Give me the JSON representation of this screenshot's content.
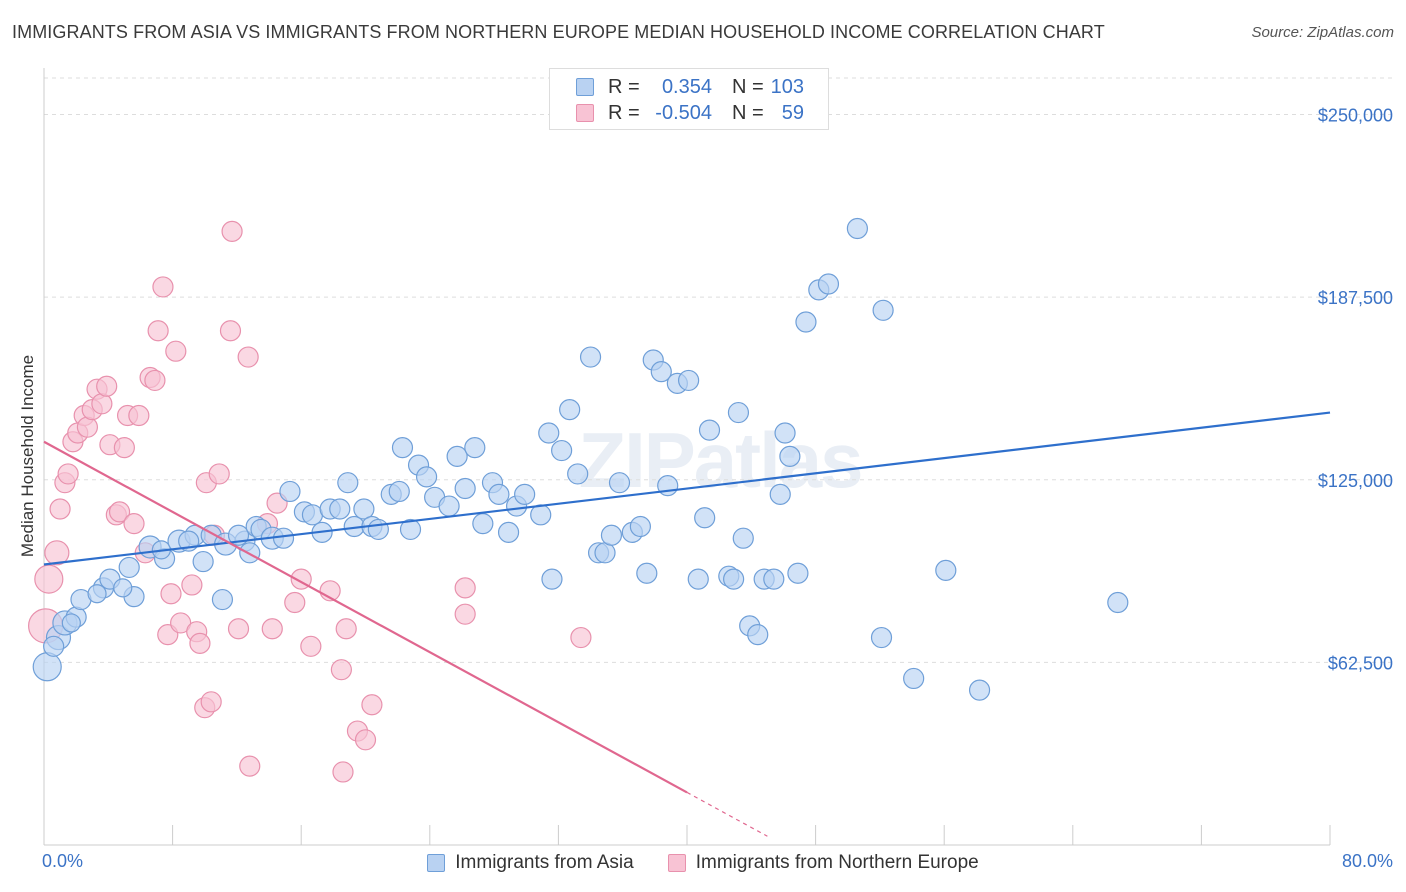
{
  "title": "IMMIGRANTS FROM ASIA VS IMMIGRANTS FROM NORTHERN EUROPE MEDIAN HOUSEHOLD INCOME CORRELATION CHART",
  "source": "Source: ZipAtlas.com",
  "watermark": "ZIPatlas",
  "legend": {
    "r_label": "R =",
    "n_label": "N =",
    "rows": [
      {
        "series": "Immigrants from Asia",
        "r": "0.354",
        "n": "103"
      },
      {
        "series": "Immigrants from Northern Europe",
        "r": "-0.504",
        "n": "59"
      }
    ]
  },
  "colors": {
    "asia_fill": "#b9d2f2",
    "asia_stroke": "#6f9fd8",
    "asia_line": "#2e6fcc",
    "neu_fill": "#f8c3d4",
    "neu_stroke": "#e891ad",
    "neu_line": "#e0678f",
    "axis_text": "#3b73c6",
    "grid": "#dddddd"
  },
  "chart_data": {
    "type": "scatter",
    "title": "IMMIGRANTS FROM ASIA VS IMMIGRANTS FROM NORTHERN EUROPE MEDIAN HOUSEHOLD INCOME CORRELATION CHART",
    "xlabel": "",
    "ylabel": "Median Household Income",
    "xlim": [
      0,
      80
    ],
    "ylim": [
      0,
      262500
    ],
    "x_tick_labels": [
      "0.0%",
      "80.0%"
    ],
    "y_ticks": [
      62500,
      125000,
      187500,
      250000
    ],
    "y_tick_labels": [
      "$62,500",
      "$125,000",
      "$187,500",
      "$250,000"
    ],
    "grid": "horizontal dashed",
    "legend_position": "top-center",
    "series": [
      {
        "name": "Immigrants from Asia",
        "r": 0.354,
        "n": 103,
        "trendline": [
          [
            0,
            96000
          ],
          [
            80,
            148000
          ]
        ],
        "points": [
          [
            0.2,
            61000,
            14
          ],
          [
            0.9,
            71000,
            12
          ],
          [
            0.6,
            68000,
            10
          ],
          [
            1.3,
            76000,
            12
          ],
          [
            2,
            78000,
            10
          ],
          [
            1.7,
            76000,
            9
          ],
          [
            2.3,
            84000,
            10
          ],
          [
            3.7,
            88000,
            10
          ],
          [
            3.3,
            86000,
            9
          ],
          [
            4.1,
            91000,
            10
          ],
          [
            5.6,
            85000,
            10
          ],
          [
            5.3,
            95000,
            10
          ],
          [
            4.9,
            88000,
            9
          ],
          [
            6.6,
            102000,
            11
          ],
          [
            7.5,
            98000,
            10
          ],
          [
            7.3,
            101000,
            9
          ],
          [
            8.4,
            104000,
            11
          ],
          [
            9.4,
            106000,
            10
          ],
          [
            9,
            104000,
            10
          ],
          [
            9.9,
            97000,
            10
          ],
          [
            10.4,
            106000,
            10
          ],
          [
            11.1,
            84000,
            10
          ],
          [
            11.3,
            103000,
            11
          ],
          [
            12.5,
            104000,
            10
          ],
          [
            12.1,
            106000,
            10
          ],
          [
            12.8,
            100000,
            10
          ],
          [
            13.2,
            109000,
            10
          ],
          [
            13.5,
            108000,
            10
          ],
          [
            14.2,
            105000,
            11
          ],
          [
            14.9,
            105000,
            10
          ],
          [
            15.3,
            121000,
            10
          ],
          [
            16.2,
            114000,
            10
          ],
          [
            16.7,
            113000,
            10
          ],
          [
            17.3,
            107000,
            10
          ],
          [
            17.8,
            115000,
            10
          ],
          [
            18.4,
            115000,
            10
          ],
          [
            18.9,
            124000,
            10
          ],
          [
            19.3,
            109000,
            10
          ],
          [
            19.9,
            115000,
            10
          ],
          [
            20.4,
            109000,
            10
          ],
          [
            20.8,
            108000,
            10
          ],
          [
            21.6,
            120000,
            10
          ],
          [
            22.1,
            121000,
            10
          ],
          [
            22.3,
            136000,
            10
          ],
          [
            22.8,
            108000,
            10
          ],
          [
            23.3,
            130000,
            10
          ],
          [
            23.8,
            126000,
            10
          ],
          [
            24.3,
            119000,
            10
          ],
          [
            25.2,
            116000,
            10
          ],
          [
            25.7,
            133000,
            10
          ],
          [
            26.2,
            122000,
            10
          ],
          [
            26.8,
            136000,
            10
          ],
          [
            27.3,
            110000,
            10
          ],
          [
            27.9,
            124000,
            10
          ],
          [
            28.3,
            120000,
            10
          ],
          [
            28.9,
            107000,
            10
          ],
          [
            29.4,
            116000,
            10
          ],
          [
            29.9,
            120000,
            10
          ],
          [
            30.9,
            113000,
            10
          ],
          [
            31.4,
            141000,
            10
          ],
          [
            31.6,
            91000,
            10
          ],
          [
            32.2,
            135000,
            10
          ],
          [
            32.7,
            149000,
            10
          ],
          [
            33.2,
            127000,
            10
          ],
          [
            34,
            167000,
            10
          ],
          [
            34.5,
            100000,
            10
          ],
          [
            34.9,
            100000,
            10
          ],
          [
            35.3,
            106000,
            10
          ],
          [
            35.8,
            124000,
            10
          ],
          [
            36.6,
            107000,
            10
          ],
          [
            37.1,
            109000,
            10
          ],
          [
            37.5,
            93000,
            10
          ],
          [
            37.9,
            166000,
            10
          ],
          [
            38.4,
            162000,
            10
          ],
          [
            38.8,
            123000,
            10
          ],
          [
            39.4,
            158000,
            10
          ],
          [
            40.1,
            159000,
            10
          ],
          [
            40.7,
            91000,
            10
          ],
          [
            41.1,
            112000,
            10
          ],
          [
            41.4,
            142000,
            10
          ],
          [
            42.6,
            92000,
            10
          ],
          [
            42.9,
            91000,
            10
          ],
          [
            43.2,
            148000,
            10
          ],
          [
            43.5,
            105000,
            10
          ],
          [
            43.9,
            75000,
            10
          ],
          [
            44.4,
            72000,
            10
          ],
          [
            44.8,
            91000,
            10
          ],
          [
            45.4,
            91000,
            10
          ],
          [
            45.8,
            120000,
            10
          ],
          [
            46.1,
            141000,
            10
          ],
          [
            46.4,
            133000,
            10
          ],
          [
            46.9,
            93000,
            10
          ],
          [
            47.4,
            179000,
            10
          ],
          [
            48.2,
            190000,
            10
          ],
          [
            48.8,
            192000,
            10
          ],
          [
            50.6,
            211000,
            10
          ],
          [
            52.1,
            71000,
            10
          ],
          [
            52.2,
            183000,
            10
          ],
          [
            54.1,
            57000,
            10
          ],
          [
            56.1,
            94000,
            10
          ],
          [
            58.2,
            53000,
            10
          ],
          [
            66.8,
            83000,
            10
          ]
        ]
      },
      {
        "name": "Immigrants from Northern Europe",
        "r": -0.504,
        "n": 59,
        "trendline": [
          [
            0,
            138000
          ],
          [
            40,
            18000
          ]
        ],
        "trendline_dashed_extension": [
          [
            40,
            18000
          ],
          [
            45,
            3000
          ]
        ],
        "points": [
          [
            0.1,
            75000,
            17
          ],
          [
            0.3,
            91000,
            14
          ],
          [
            0.8,
            100000,
            12
          ],
          [
            1,
            115000,
            10
          ],
          [
            1.3,
            124000,
            10
          ],
          [
            1.5,
            127000,
            10
          ],
          [
            1.8,
            138000,
            10
          ],
          [
            2.1,
            141000,
            10
          ],
          [
            2.5,
            147000,
            10
          ],
          [
            2.7,
            143000,
            10
          ],
          [
            3,
            149000,
            10
          ],
          [
            3.3,
            156000,
            10
          ],
          [
            3.6,
            151000,
            10
          ],
          [
            3.9,
            157000,
            10
          ],
          [
            4.1,
            137000,
            10
          ],
          [
            4.5,
            113000,
            10
          ],
          [
            4.7,
            114000,
            10
          ],
          [
            5,
            136000,
            10
          ],
          [
            5.2,
            147000,
            10
          ],
          [
            5.6,
            110000,
            10
          ],
          [
            5.9,
            147000,
            10
          ],
          [
            6.3,
            100000,
            10
          ],
          [
            6.6,
            160000,
            10
          ],
          [
            6.9,
            159000,
            10
          ],
          [
            7.1,
            176000,
            10
          ],
          [
            7.4,
            191000,
            10
          ],
          [
            7.7,
            72000,
            10
          ],
          [
            7.9,
            86000,
            10
          ],
          [
            8.2,
            169000,
            10
          ],
          [
            8.5,
            76000,
            10
          ],
          [
            9.2,
            89000,
            10
          ],
          [
            9.5,
            73000,
            10
          ],
          [
            9.7,
            69000,
            10
          ],
          [
            10,
            47000,
            10
          ],
          [
            10.1,
            124000,
            10
          ],
          [
            10.4,
            49000,
            10
          ],
          [
            10.6,
            106000,
            10
          ],
          [
            10.9,
            127000,
            10
          ],
          [
            11.6,
            176000,
            10
          ],
          [
            11.7,
            210000,
            10
          ],
          [
            12.1,
            74000,
            10
          ],
          [
            12.7,
            167000,
            10
          ],
          [
            12.8,
            27000,
            10
          ],
          [
            13.9,
            110000,
            10
          ],
          [
            14.2,
            74000,
            10
          ],
          [
            14.5,
            117000,
            10
          ],
          [
            15.6,
            83000,
            10
          ],
          [
            16,
            91000,
            10
          ],
          [
            16.6,
            68000,
            10
          ],
          [
            17.8,
            87000,
            10
          ],
          [
            18.5,
            60000,
            10
          ],
          [
            18.6,
            25000,
            10
          ],
          [
            18.8,
            74000,
            10
          ],
          [
            19.5,
            39000,
            10
          ],
          [
            20,
            36000,
            10
          ],
          [
            20.4,
            48000,
            10
          ],
          [
            26.2,
            88000,
            10
          ],
          [
            26.2,
            79000,
            10
          ],
          [
            33.4,
            71000,
            10
          ]
        ]
      }
    ]
  }
}
